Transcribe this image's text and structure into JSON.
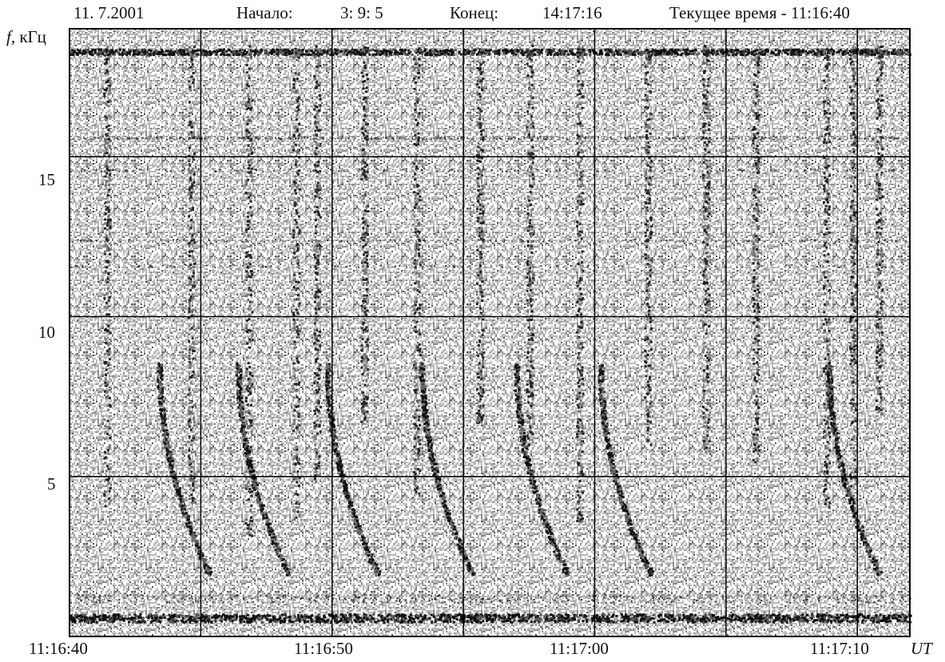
{
  "header": {
    "date": "11. 7.2001",
    "start_label": "Начало:",
    "start_value": "3: 9: 5",
    "end_label": "Конец:",
    "end_value": "14:17:16",
    "current_time": "Текущее время - 11:16:40"
  },
  "chart_data": {
    "type": "heatmap",
    "ylabel_italic": "f",
    "ylabel_rest": ", кГц",
    "xunit": "UT",
    "ylim": [
      0,
      19
    ],
    "y_ticks": [
      {
        "value": 15,
        "label": "15"
      },
      {
        "value": 10,
        "label": "10"
      },
      {
        "value": 5,
        "label": "5"
      }
    ],
    "x_ticks": [
      {
        "value": "11:16:40",
        "label": "11:16:40"
      },
      {
        "value": "11:16:50",
        "label": "11:16:50"
      },
      {
        "value": "11:17:00",
        "label": "11:17:00"
      },
      {
        "value": "11:17:10",
        "label": "11:17:10"
      }
    ],
    "x_range": [
      "11:16:40",
      "11:17:12"
    ],
    "grid": true,
    "dispersed_whistlers_khz": {
      "start": 8.5,
      "end": 2.0
    }
  }
}
